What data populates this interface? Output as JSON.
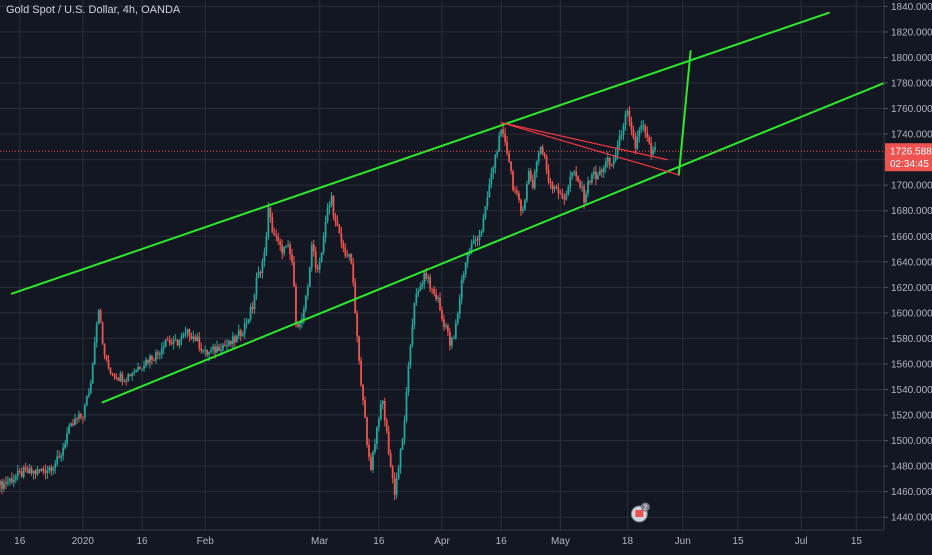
{
  "header": {
    "title": "Gold Spot / U.S. Dollar, 4h, OANDA"
  },
  "price_badge": {
    "price": "1726.588",
    "countdown": "02:34:45"
  },
  "event_badge": {
    "count": "2"
  },
  "colors": {
    "background": "#131722",
    "grid": "#2a2e39",
    "up": "#26a69a",
    "down": "#ef5350",
    "channel": "#2ee82e",
    "trend": "#f23645",
    "axis_text": "#b2b5be"
  },
  "icons": {
    "event": "earnings-flag-icon"
  },
  "chart_data": {
    "type": "candlestick",
    "ylim": [
      1430,
      1845
    ],
    "y_ticks": [
      1440,
      1460,
      1480,
      1500,
      1520,
      1540,
      1560,
      1580,
      1600,
      1620,
      1640,
      1660,
      1680,
      1700,
      1720,
      1740,
      1760,
      1780,
      1800,
      1820,
      1840
    ],
    "y_tick_labels": [
      "1440.000",
      "1460.000",
      "1480.000",
      "1500.000",
      "1520.000",
      "1540.000",
      "1560.000",
      "1580.000",
      "1600.000",
      "1620.000",
      "1640.000",
      "1660.000",
      "1680.000",
      "1700.000",
      "1720.000",
      "1740.000",
      "1760.000",
      "1780.000",
      "1800.000",
      "1820.000",
      "1840.000"
    ],
    "x_ticks": [
      {
        "label": "16",
        "day": -16
      },
      {
        "label": "2020",
        "day": 0
      },
      {
        "label": "16",
        "day": 15
      },
      {
        "label": "Feb",
        "day": 31
      },
      {
        "label": "Mar",
        "day": 60
      },
      {
        "label": "16",
        "day": 75
      },
      {
        "label": "Apr",
        "day": 91
      },
      {
        "label": "16",
        "day": 106
      },
      {
        "label": "May",
        "day": 121
      },
      {
        "label": "18",
        "day": 138
      },
      {
        "label": "Jun",
        "day": 152
      },
      {
        "label": "15",
        "day": 166
      },
      {
        "label": "Jul",
        "day": 182
      },
      {
        "label": "15",
        "day": 196
      }
    ],
    "xlim": [
      -21,
      203
    ],
    "last_price": 1726.588,
    "price_path": [
      [
        -21,
        1465
      ],
      [
        -18,
        1470
      ],
      [
        -15,
        1475
      ],
      [
        -12,
        1475
      ],
      [
        -9,
        1478
      ],
      [
        -6,
        1485
      ],
      [
        -4,
        1505
      ],
      [
        -2,
        1515
      ],
      [
        0,
        1520
      ],
      [
        2,
        1545
      ],
      [
        3,
        1580
      ],
      [
        4,
        1605
      ],
      [
        5,
        1575
      ],
      [
        6,
        1560
      ],
      [
        7,
        1555
      ],
      [
        9,
        1550
      ],
      [
        11,
        1550
      ],
      [
        13,
        1555
      ],
      [
        15,
        1560
      ],
      [
        17,
        1565
      ],
      [
        19,
        1568
      ],
      [
        21,
        1580
      ],
      [
        23,
        1575
      ],
      [
        25,
        1580
      ],
      [
        27,
        1585
      ],
      [
        29,
        1578
      ],
      [
        31,
        1568
      ],
      [
        33,
        1570
      ],
      [
        35,
        1575
      ],
      [
        37,
        1575
      ],
      [
        39,
        1580
      ],
      [
        41,
        1590
      ],
      [
        43,
        1605
      ],
      [
        44,
        1625
      ],
      [
        46,
        1645
      ],
      [
        47,
        1680
      ],
      [
        48,
        1665
      ],
      [
        50,
        1650
      ],
      [
        52,
        1650
      ],
      [
        53,
        1640
      ],
      [
        54,
        1595
      ],
      [
        55,
        1590
      ],
      [
        56,
        1600
      ],
      [
        57,
        1620
      ],
      [
        58,
        1655
      ],
      [
        59,
        1635
      ],
      [
        60,
        1640
      ],
      [
        61,
        1660
      ],
      [
        62,
        1680
      ],
      [
        63,
        1690
      ],
      [
        64,
        1670
      ],
      [
        65,
        1660
      ],
      [
        66,
        1650
      ],
      [
        68,
        1640
      ],
      [
        69,
        1600
      ],
      [
        70,
        1560
      ],
      [
        71,
        1535
      ],
      [
        72,
        1495
      ],
      [
        73,
        1480
      ],
      [
        74,
        1500
      ],
      [
        75,
        1520
      ],
      [
        76,
        1530
      ],
      [
        77,
        1505
      ],
      [
        78,
        1480
      ],
      [
        79,
        1460
      ],
      [
        80,
        1480
      ],
      [
        81,
        1500
      ],
      [
        82,
        1535
      ],
      [
        83,
        1575
      ],
      [
        84,
        1610
      ],
      [
        85,
        1615
      ],
      [
        86,
        1625
      ],
      [
        87,
        1630
      ],
      [
        88,
        1620
      ],
      [
        89,
        1615
      ],
      [
        90,
        1610
      ],
      [
        91,
        1595
      ],
      [
        92,
        1590
      ],
      [
        93,
        1575
      ],
      [
        94,
        1580
      ],
      [
        95,
        1600
      ],
      [
        96,
        1625
      ],
      [
        97,
        1640
      ],
      [
        98,
        1650
      ],
      [
        99,
        1655
      ],
      [
        100,
        1660
      ],
      [
        101,
        1665
      ],
      [
        102,
        1680
      ],
      [
        103,
        1700
      ],
      [
        104,
        1715
      ],
      [
        105,
        1730
      ],
      [
        106,
        1740
      ],
      [
        107,
        1735
      ],
      [
        108,
        1720
      ],
      [
        109,
        1700
      ],
      [
        110,
        1690
      ],
      [
        111,
        1680
      ],
      [
        112,
        1690
      ],
      [
        113,
        1710
      ],
      [
        114,
        1700
      ],
      [
        115,
        1720
      ],
      [
        116,
        1730
      ],
      [
        117,
        1720
      ],
      [
        118,
        1705
      ],
      [
        119,
        1700
      ],
      [
        120,
        1700
      ],
      [
        121,
        1690
      ],
      [
        122,
        1690
      ],
      [
        123,
        1700
      ],
      [
        124,
        1710
      ],
      [
        125,
        1705
      ],
      [
        126,
        1700
      ],
      [
        127,
        1690
      ],
      [
        128,
        1700
      ],
      [
        129,
        1710
      ],
      [
        130,
        1705
      ],
      [
        131,
        1710
      ],
      [
        132,
        1715
      ],
      [
        133,
        1718
      ],
      [
        134,
        1715
      ],
      [
        135,
        1725
      ],
      [
        136,
        1735
      ],
      [
        137,
        1750
      ],
      [
        138,
        1755
      ],
      [
        139,
        1740
      ],
      [
        140,
        1730
      ],
      [
        141,
        1745
      ],
      [
        142,
        1745
      ],
      [
        143,
        1735
      ],
      [
        144,
        1725
      ],
      [
        145,
        1726.588
      ]
    ],
    "drawings": [
      {
        "name": "channel-upper-line",
        "color": "channel",
        "points": [
          [
            -18,
            1615
          ],
          [
            189,
            1835
          ]
        ]
      },
      {
        "name": "channel-lower-line",
        "color": "channel",
        "points": [
          [
            5,
            1530
          ],
          [
            203,
            1780
          ]
        ]
      },
      {
        "name": "projection-line",
        "color": "channel",
        "points": [
          [
            151,
            1708
          ],
          [
            154,
            1805
          ]
        ]
      },
      {
        "name": "triangle-top-line",
        "color": "trend",
        "points": [
          [
            106,
            1749
          ],
          [
            148,
            1720
          ]
        ]
      },
      {
        "name": "triangle-hyp-line",
        "color": "trend",
        "points": [
          [
            106,
            1749
          ],
          [
            151,
            1708
          ]
        ]
      }
    ]
  }
}
